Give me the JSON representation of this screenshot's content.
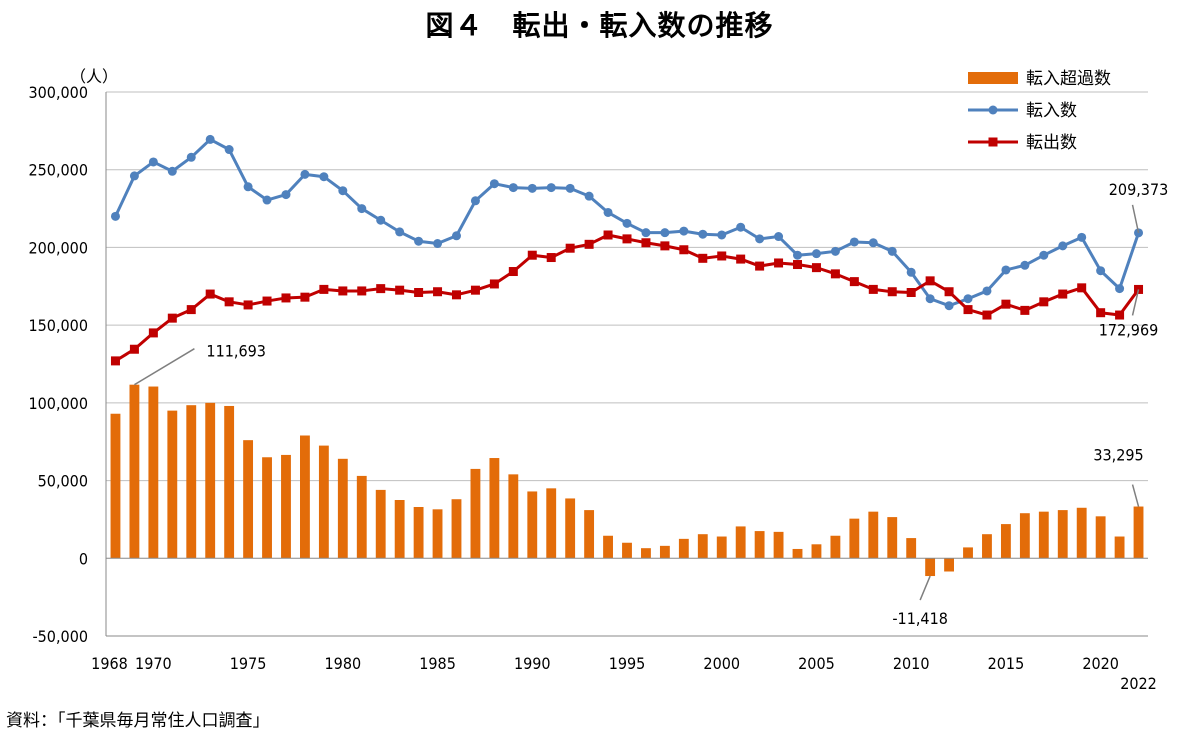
{
  "title": "図４　転出・転入数の推移",
  "source": "資料：「千葉県毎月常住人口調査」",
  "chart_data": {
    "type": "bar+line",
    "unit": "（人）",
    "ylim": [
      -50000,
      300000
    ],
    "ytick_values": [
      -50000,
      0,
      50000,
      100000,
      150000,
      200000,
      250000,
      300000
    ],
    "ytick_labels": [
      "-50,000",
      "0",
      "50,000",
      "100,000",
      "150,000",
      "200,000",
      "250,000",
      "300,000"
    ],
    "grid": "horizontal",
    "legend_placement": "top-right",
    "x": [
      1968,
      1969,
      1970,
      1971,
      1972,
      1973,
      1974,
      1975,
      1976,
      1977,
      1978,
      1979,
      1980,
      1981,
      1982,
      1983,
      1984,
      1985,
      1986,
      1987,
      1988,
      1989,
      1990,
      1991,
      1992,
      1993,
      1994,
      1995,
      1996,
      1997,
      1998,
      1999,
      2000,
      2001,
      2002,
      2003,
      2004,
      2005,
      2006,
      2007,
      2008,
      2009,
      2010,
      2011,
      2012,
      2013,
      2014,
      2015,
      2016,
      2017,
      2018,
      2019,
      2020,
      2021,
      2022
    ],
    "xtick_labels": [
      {
        "label": "1968",
        "x": 1968
      },
      {
        "label": "1970",
        "x": 1970
      },
      {
        "label": "1975",
        "x": 1975
      },
      {
        "label": "1980",
        "x": 1980
      },
      {
        "label": "1985",
        "x": 1985
      },
      {
        "label": "1990",
        "x": 1990
      },
      {
        "label": "1995",
        "x": 1995
      },
      {
        "label": "2000",
        "x": 2000
      },
      {
        "label": "2005",
        "x": 2005
      },
      {
        "label": "2010",
        "x": 2010
      },
      {
        "label": "2015",
        "x": 2015
      },
      {
        "label": "2020",
        "x": 2020
      },
      {
        "label": "2022",
        "x": 2022
      }
    ],
    "series": [
      {
        "name": "転入超過数",
        "kind": "bar",
        "color": "#E36C09",
        "values": [
          93000,
          111693,
          110500,
          95000,
          98500,
          100000,
          98000,
          76000,
          65000,
          66500,
          79000,
          72500,
          64000,
          53000,
          44000,
          37500,
          33000,
          31500,
          38000,
          57500,
          64500,
          54000,
          43000,
          45000,
          38500,
          31000,
          14500,
          10000,
          6500,
          8000,
          12500,
          15500,
          14000,
          20500,
          17500,
          17000,
          6000,
          9000,
          14500,
          25500,
          30000,
          26500,
          13000,
          -11418,
          -8500,
          7000,
          15500,
          22000,
          29000,
          30000,
          31000,
          32500,
          27000,
          14000,
          33295
        ]
      },
      {
        "name": "転入数",
        "kind": "line",
        "color": "#4F81BD",
        "marker": "circle",
        "values": [
          220000,
          246000,
          255000,
          249000,
          258000,
          269500,
          263000,
          239000,
          230500,
          234000,
          247000,
          245500,
          236500,
          225000,
          217500,
          210000,
          204000,
          202500,
          207500,
          230000,
          241000,
          238500,
          238000,
          238500,
          238000,
          233000,
          222500,
          215500,
          209500,
          209500,
          210500,
          208500,
          208000,
          213000,
          205500,
          207000,
          195000,
          196000,
          197500,
          203500,
          203000,
          197500,
          184000,
          167000,
          162500,
          167000,
          172000,
          185500,
          188500,
          195000,
          201000,
          206500,
          185000,
          173500,
          209373
        ]
      },
      {
        "name": "転出数",
        "kind": "line",
        "color": "#C00000",
        "marker": "square",
        "values": [
          127000,
          134500,
          145000,
          154500,
          160000,
          170000,
          165000,
          163000,
          165500,
          167500,
          168000,
          173000,
          172000,
          172000,
          173500,
          172500,
          171000,
          171500,
          169500,
          172500,
          176500,
          184500,
          195000,
          193500,
          199500,
          202000,
          208000,
          205500,
          203000,
          201000,
          198500,
          193000,
          194500,
          192500,
          188000,
          190000,
          189000,
          187000,
          183000,
          178000,
          173000,
          171500,
          171000,
          178500,
          171500,
          160000,
          156500,
          163500,
          159500,
          165000,
          170000,
          174000,
          158000,
          156500,
          172969
        ]
      }
    ],
    "annotations": [
      {
        "text": "111,693",
        "series": "転入超過数",
        "x": 1969,
        "value": 111693
      },
      {
        "text": "209,373",
        "series": "転入数",
        "x": 2022,
        "value": 209373
      },
      {
        "text": "172,969",
        "series": "転出数",
        "x": 2022,
        "value": 172969
      },
      {
        "text": "33,295",
        "series": "転入超過数",
        "x": 2022,
        "value": 33295
      },
      {
        "text": "-11,418",
        "series": "転入超過数",
        "x": 2011,
        "value": -11418
      }
    ]
  }
}
